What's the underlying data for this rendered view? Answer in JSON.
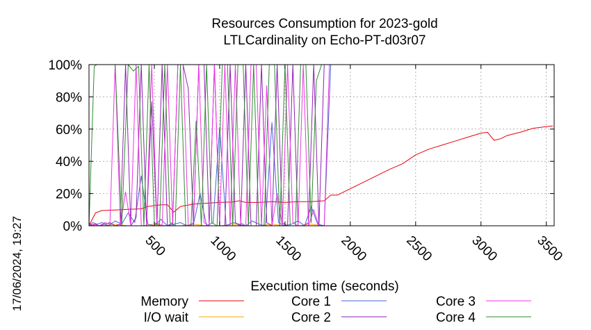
{
  "chart_data": {
    "type": "line",
    "title": "Resources Consumption for 2023-gold",
    "subtitle": "LTLCardinality on Echo-PT-d03r07",
    "xlabel": "Execution time (seconds)",
    "ylabel": "",
    "timestamp": "17/06/2024, 19:27",
    "xlim": [
      0,
      3560
    ],
    "ylim": [
      0,
      100
    ],
    "x_ticks": [
      {
        "value": 500,
        "label": "500"
      },
      {
        "value": 1000,
        "label": "1000"
      },
      {
        "value": 1500,
        "label": "1500"
      },
      {
        "value": 2000,
        "label": "2000"
      },
      {
        "value": 2500,
        "label": "2500"
      },
      {
        "value": 3000,
        "label": "3000"
      },
      {
        "value": 3500,
        "label": "3500"
      }
    ],
    "y_ticks": [
      {
        "value": 0,
        "label": "0%"
      },
      {
        "value": 20,
        "label": "20%"
      },
      {
        "value": 40,
        "label": "40%"
      },
      {
        "value": 60,
        "label": "60%"
      },
      {
        "value": 80,
        "label": "80%"
      },
      {
        "value": 100,
        "label": "100%"
      }
    ],
    "grid": true,
    "legend_position": "bottom",
    "series": [
      {
        "name": "Memory",
        "color": "#e8000b",
        "x": [
          0,
          50,
          100,
          200,
          300,
          400,
          450,
          500,
          550,
          600,
          650,
          700,
          800,
          900,
          1000,
          1100,
          1150,
          1200,
          1300,
          1400,
          1500,
          1600,
          1700,
          1800,
          1850,
          1900,
          2000,
          2100,
          2200,
          2300,
          2400,
          2500,
          2600,
          2700,
          2800,
          2900,
          3000,
          3050,
          3100,
          3150,
          3200,
          3300,
          3400,
          3500,
          3550
        ],
        "values": [
          0,
          8,
          9.5,
          9.8,
          10.2,
          10.5,
          12,
          12.5,
          13,
          13,
          8.5,
          12,
          13.5,
          14,
          14.5,
          14.8,
          15.5,
          14.5,
          14.5,
          15,
          14.5,
          15,
          15,
          15.5,
          19,
          19,
          23,
          27,
          31,
          35,
          38.5,
          44,
          47.5,
          50,
          52.5,
          55,
          57.5,
          58,
          53,
          54,
          56,
          58,
          60.5,
          61.5,
          62
        ]
      },
      {
        "name": "I/O wait",
        "color": "#ffa500",
        "x": [
          0,
          100,
          200,
          300,
          400,
          500,
          600,
          700,
          800,
          900,
          1000,
          1100,
          1200,
          1300,
          1400,
          1500,
          1600,
          1700,
          1800,
          1900
        ],
        "values": [
          1,
          0,
          1,
          0,
          0,
          1,
          0,
          0,
          1,
          0,
          0,
          1,
          0,
          0,
          1,
          0,
          0,
          1,
          0,
          0
        ]
      },
      {
        "name": "Core 1",
        "color": "#4363d8",
        "x": [
          0,
          30,
          60,
          100,
          150,
          200,
          250,
          300,
          350,
          400,
          450,
          500,
          550,
          600,
          650,
          700,
          750,
          800,
          850,
          900,
          950,
          1000,
          1050,
          1100,
          1150,
          1200,
          1250,
          1300,
          1350,
          1400,
          1450,
          1500,
          1550,
          1600,
          1650,
          1700,
          1750,
          1800,
          1850,
          1880,
          1900,
          2000,
          3560
        ],
        "values": [
          0,
          2,
          1,
          2,
          0,
          3,
          1,
          8,
          2,
          31,
          1,
          0,
          4,
          0,
          1,
          2,
          0,
          1,
          20,
          0,
          2,
          61,
          0,
          2,
          1,
          0,
          3,
          1,
          0,
          64,
          2,
          0,
          1,
          3,
          0,
          12,
          1,
          0,
          100,
          100,
          100,
          100,
          100
        ]
      },
      {
        "name": "Core 2",
        "color": "#911eb4",
        "x": [
          0,
          25,
          50,
          80,
          120,
          160,
          200,
          240,
          280,
          320,
          360,
          400,
          440,
          480,
          520,
          560,
          600,
          640,
          680,
          720,
          760,
          800,
          840,
          880,
          920,
          960,
          1000,
          1040,
          1080,
          1120,
          1160,
          1200,
          1240,
          1280,
          1320,
          1360,
          1400,
          1440,
          1480,
          1520,
          1560,
          1600,
          1640,
          1680,
          1720,
          1760,
          1800,
          1840,
          1880,
          3560
        ],
        "values": [
          2,
          0,
          1,
          0,
          1,
          2,
          0,
          1,
          100,
          0,
          5,
          100,
          0,
          77,
          0,
          100,
          0,
          2,
          100,
          100,
          85,
          0,
          100,
          100,
          0,
          100,
          0,
          0,
          100,
          2,
          0,
          100,
          0,
          0,
          100,
          2,
          0,
          100,
          2,
          0,
          100,
          0,
          0,
          2,
          100,
          0,
          100,
          100,
          100,
          100
        ]
      },
      {
        "name": "Core 3",
        "color": "#f032e6",
        "x": [
          0,
          40,
          80,
          120,
          160,
          200,
          240,
          280,
          320,
          360,
          400,
          440,
          480,
          520,
          560,
          600,
          640,
          680,
          720,
          760,
          800,
          840,
          880,
          920,
          960,
          1000,
          1040,
          1080,
          1120,
          1160,
          1200,
          1240,
          1280,
          1320,
          1360,
          1400,
          1440,
          1480,
          1520,
          1560,
          1600,
          1640,
          1680,
          1720,
          1760,
          1800,
          1840,
          1880,
          3560
        ],
        "values": [
          0,
          1,
          0,
          2,
          1,
          100,
          0,
          21,
          0,
          100,
          0,
          0,
          100,
          2,
          0,
          100,
          0,
          100,
          100,
          0,
          2,
          100,
          2,
          0,
          100,
          0,
          100,
          0,
          100,
          2,
          0,
          100,
          100,
          0,
          87,
          0,
          20,
          0,
          100,
          2,
          0,
          100,
          0,
          10,
          0,
          0,
          100,
          100,
          100
        ]
      },
      {
        "name": "Core 4",
        "color": "#2e8b2e",
        "x": [
          0,
          40,
          60,
          100,
          150,
          200,
          250,
          300,
          340,
          380,
          420,
          460,
          500,
          540,
          580,
          620,
          660,
          700,
          740,
          780,
          820,
          860,
          900,
          940,
          980,
          1020,
          1060,
          1100,
          1140,
          1180,
          1220,
          1260,
          1300,
          1340,
          1380,
          1420,
          1460,
          1500,
          1540,
          1580,
          1620,
          1660,
          1700,
          1740,
          1780,
          1820,
          1860,
          3560
        ],
        "values": [
          0,
          99,
          100,
          100,
          100,
          100,
          0,
          100,
          96,
          99,
          0,
          100,
          2,
          0,
          100,
          2,
          0,
          100,
          0,
          0,
          65,
          0,
          100,
          2,
          0,
          100,
          100,
          0,
          100,
          100,
          0,
          100,
          0,
          0,
          100,
          100,
          0,
          100,
          0,
          0,
          100,
          100,
          2,
          90,
          100,
          100,
          100,
          100
        ]
      }
    ]
  }
}
